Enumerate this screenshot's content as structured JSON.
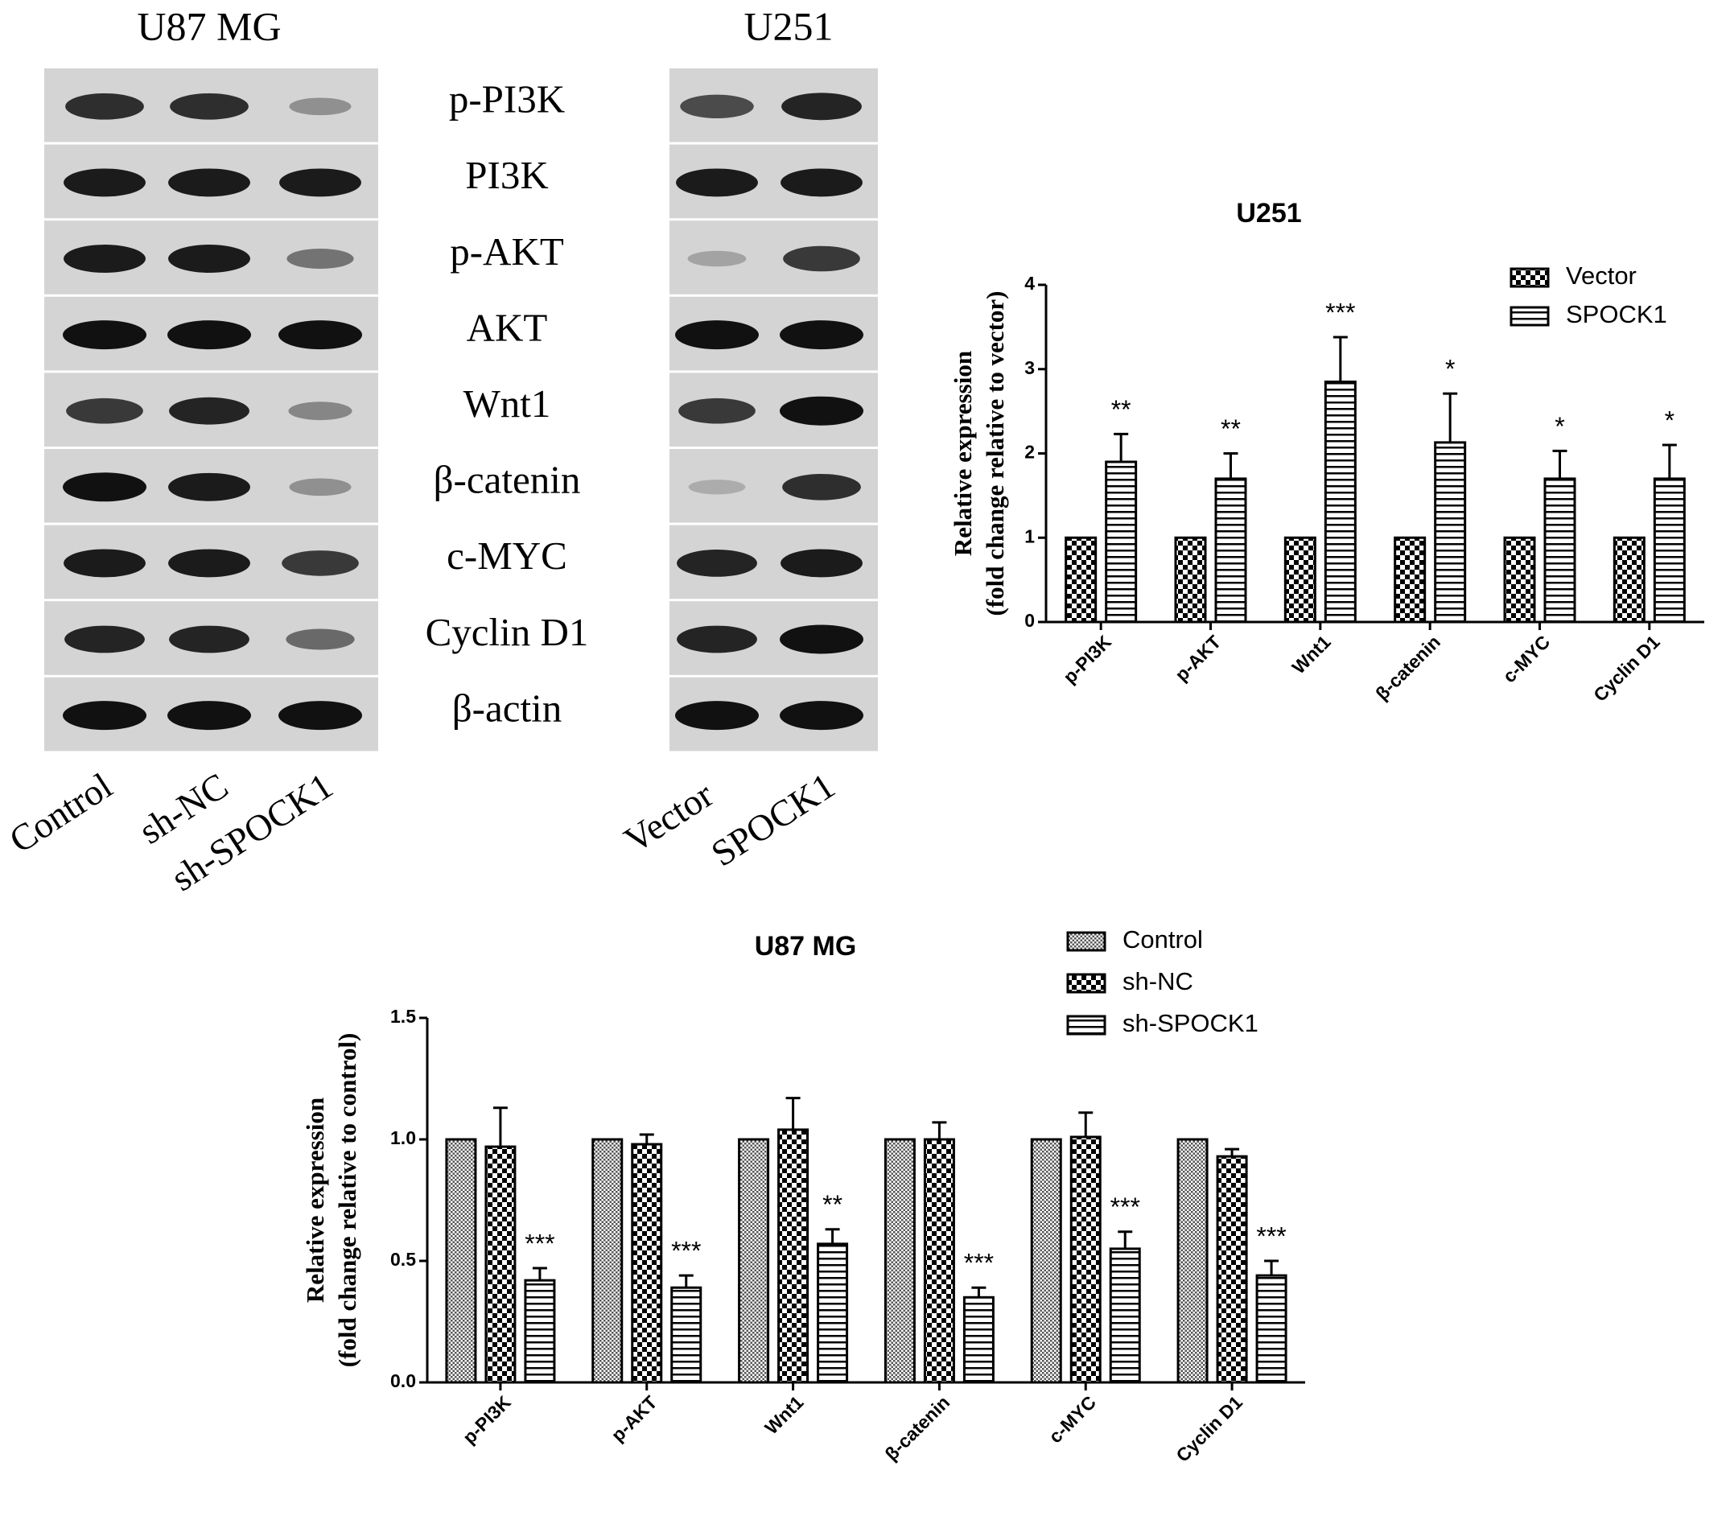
{
  "blots": {
    "proteins": [
      "p-PI3K",
      "PI3K",
      "p-AKT",
      "AKT",
      "Wnt1",
      "β-catenin",
      "c-MYC",
      "Cyclin D1",
      "β-actin"
    ],
    "panels": [
      {
        "title": "U87 MG",
        "lanes": [
          "Control",
          "sh-NC",
          "sh-SPOCK1"
        ]
      },
      {
        "title": "U251",
        "lanes": [
          "Vector",
          "SPOCK1"
        ]
      }
    ]
  },
  "chart_data": [
    {
      "type": "bar",
      "title": "U251",
      "ylabel": [
        "Relative expression",
        "(fold change relative to vector)"
      ],
      "categories": [
        "p-PI3K",
        "p-AKT",
        "Wnt1",
        "β-catenin",
        "c-MYC",
        "Cyclin D1"
      ],
      "series": [
        {
          "name": "Vector",
          "color": "#000000",
          "pattern": "checker",
          "values": [
            1,
            1,
            1,
            1,
            1,
            1
          ]
        },
        {
          "name": "SPOCK1",
          "color": "#000000",
          "pattern": "stripes",
          "values": [
            1.9,
            1.7,
            2.85,
            2.13,
            1.7,
            1.7
          ],
          "errors": [
            0.33,
            0.3,
            0.53,
            0.58,
            0.33,
            0.4
          ],
          "significance": [
            "**",
            "**",
            "***",
            "*",
            "*",
            "*"
          ]
        }
      ],
      "ylim": [
        0,
        4
      ],
      "yticks": [
        0,
        1,
        2,
        3,
        4
      ],
      "legend": "top-right"
    },
    {
      "type": "bar",
      "title": "U87 MG",
      "ylabel": [
        "Relative expression",
        "(fold change relative to control)"
      ],
      "categories": [
        "p-PI3K",
        "p-AKT",
        "Wnt1",
        "β-catenin",
        "c-MYC",
        "Cyclin D1"
      ],
      "series": [
        {
          "name": "Control",
          "color": "#000000",
          "pattern": "dots",
          "values": [
            1,
            1,
            1,
            1,
            1,
            1
          ]
        },
        {
          "name": "sh-NC",
          "color": "#000000",
          "pattern": "checker",
          "values": [
            0.97,
            0.98,
            1.04,
            1.0,
            1.01,
            0.93
          ],
          "errors": [
            0.16,
            0.04,
            0.13,
            0.07,
            0.1,
            0.03
          ]
        },
        {
          "name": "sh-SPOCK1",
          "color": "#000000",
          "pattern": "stripes",
          "values": [
            0.42,
            0.39,
            0.57,
            0.35,
            0.55,
            0.44
          ],
          "errors": [
            0.05,
            0.05,
            0.06,
            0.04,
            0.07,
            0.06
          ],
          "significance": [
            "***",
            "***",
            "**",
            "***",
            "***",
            "***"
          ]
        }
      ],
      "ylim": [
        0,
        1.5
      ],
      "yticks": [
        {
          "value": 0,
          "label": "0.0"
        },
        0.5,
        {
          "value": 1,
          "label": "1.0"
        },
        1.5
      ],
      "legend": "top-right"
    }
  ]
}
